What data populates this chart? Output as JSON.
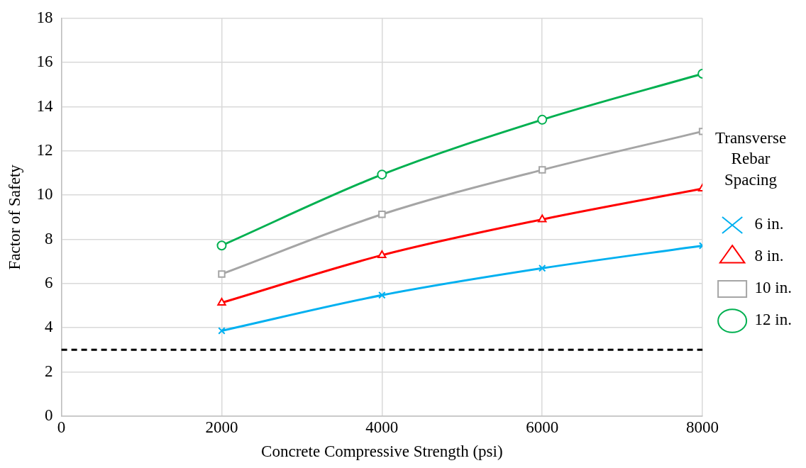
{
  "chart_data": {
    "type": "line",
    "xlabel": "Concrete Compressive Strength (psi)",
    "ylabel": "Factor of Safety",
    "legend_title": "Transverse Rebar Spacing",
    "x": [
      2000,
      4000,
      6000,
      8000
    ],
    "series": [
      {
        "name": "6 in.",
        "color": "#00b0f0",
        "marker": "cross",
        "values": [
          3.86,
          5.47,
          6.69,
          7.71
        ]
      },
      {
        "name": "8 in.",
        "color": "#ff0000",
        "marker": "triangle",
        "values": [
          5.13,
          7.28,
          8.9,
          10.29
        ]
      },
      {
        "name": "10 in.",
        "color": "#a5a5a5",
        "marker": "square",
        "values": [
          6.43,
          9.13,
          11.14,
          12.88
        ]
      },
      {
        "name": "12 in.",
        "color": "#00b050",
        "marker": "circle",
        "values": [
          7.72,
          10.93,
          13.41,
          15.49
        ]
      }
    ],
    "xlim": [
      0,
      8000
    ],
    "xticks": [
      0,
      2000,
      4000,
      6000,
      8000
    ],
    "ylim": [
      0,
      18
    ],
    "yticks": [
      0,
      2,
      4,
      6,
      8,
      10,
      12,
      14,
      16,
      18
    ],
    "ref_lines": [
      {
        "axis": "y",
        "value": 3,
        "color": "#000000",
        "line_style": "dashed"
      }
    ],
    "grid": true,
    "legend": "right",
    "line_style": "solid"
  }
}
